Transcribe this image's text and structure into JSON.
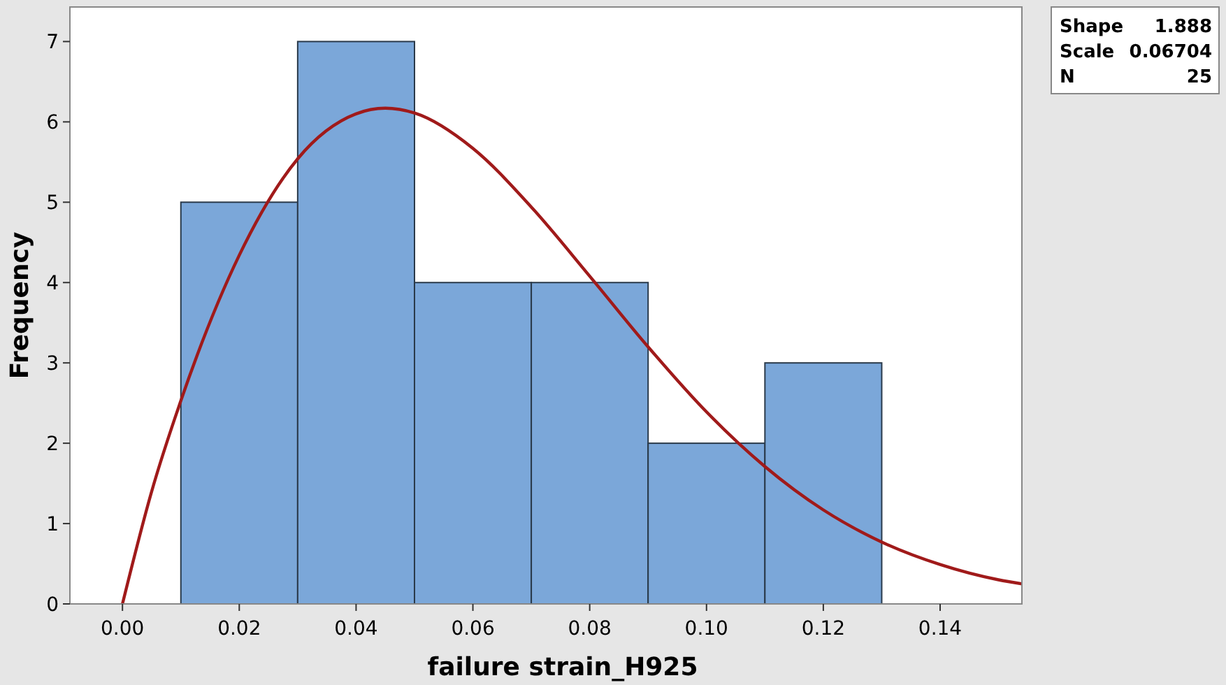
{
  "chart_data": {
    "type": "histogram",
    "xlabel": "failure strain_H925",
    "ylabel": "Frequency",
    "bins": [
      0.01,
      0.03,
      0.05,
      0.07,
      0.09,
      0.11,
      0.13
    ],
    "values": [
      5,
      7,
      4,
      4,
      2,
      3
    ],
    "color": "#7ba7d9",
    "series": [
      {
        "type": "line",
        "color": "#a01a1a",
        "x": [
          0,
          0.005,
          0.01,
          0.02,
          0.03,
          0.04,
          0.045,
          0.05,
          0.06,
          0.07,
          0.08,
          0.09,
          0.1,
          0.11,
          0.12,
          0.13,
          0.14,
          0.15,
          0.154
        ],
        "values": [
          0,
          1.4,
          2.53,
          4.34,
          5.54,
          6.1,
          6.17,
          6.11,
          5.67,
          4.94,
          4.08,
          3.2,
          2.39,
          1.71,
          1.17,
          0.77,
          0.49,
          0.3,
          0.25
        ]
      }
    ],
    "xlim": [
      -0.009,
      0.154
    ],
    "xticks": [
      {
        "value": 0,
        "label": "0.00"
      },
      {
        "value": 0.02,
        "label": "0.02"
      },
      {
        "value": 0.04,
        "label": "0.04"
      },
      {
        "value": 0.06,
        "label": "0.06"
      },
      {
        "value": 0.08,
        "label": "0.08"
      },
      {
        "value": 0.1,
        "label": "0.10"
      },
      {
        "value": 0.12,
        "label": "0.12"
      },
      {
        "value": 0.14,
        "label": "0.14"
      }
    ],
    "ylim": [
      0,
      7.43
    ],
    "yticks": [
      0,
      1,
      2,
      3,
      4,
      5,
      6,
      7
    ],
    "grid": false,
    "annotations": [
      "Shape 1.888",
      "Scale 0.06704",
      "N 25"
    ]
  }
}
